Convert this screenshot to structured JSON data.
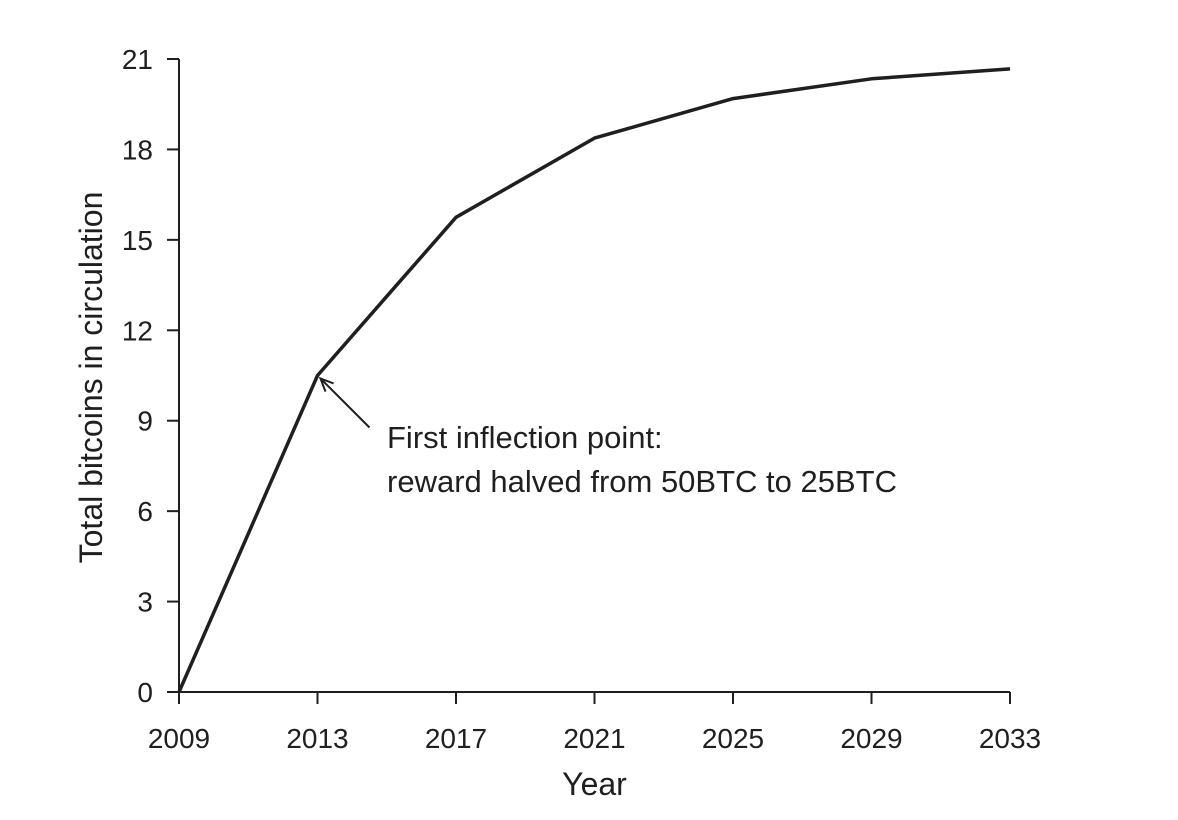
{
  "chart_data": {
    "type": "line",
    "title": "",
    "xlabel": "Year",
    "ylabel": "Total bitcoins in circulation",
    "xlim": [
      2009,
      2033
    ],
    "ylim": [
      0,
      21
    ],
    "x_ticks": [
      2009,
      2013,
      2017,
      2021,
      2025,
      2029,
      2033
    ],
    "y_ticks": [
      0,
      3,
      6,
      9,
      12,
      15,
      18,
      21
    ],
    "grid": false,
    "legend": "none",
    "series": [
      {
        "x": [
          2009,
          2013,
          2017,
          2021,
          2025,
          2029,
          2033
        ],
        "values": [
          0,
          10.5,
          15.75,
          18.375,
          19.6875,
          20.34375,
          20.671875
        ]
      }
    ],
    "annotations": [
      {
        "target": {
          "x": 2013,
          "y": 10.5
        },
        "lines": [
          "First inflection point:",
          "reward halved from 50BTC to 25BTC"
        ]
      }
    ],
    "colors": {
      "line": "#1f1f1f",
      "axis": "#1f1f1f"
    }
  }
}
